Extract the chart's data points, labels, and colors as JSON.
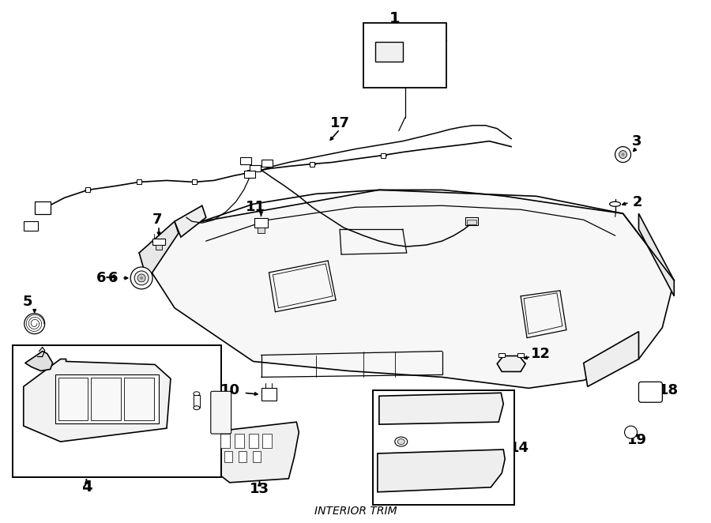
{
  "title": "INTERIOR TRIM",
  "bg": "#ffffff",
  "lc": "#000000",
  "figsize": [
    9.0,
    6.62
  ],
  "dpi": 100
}
